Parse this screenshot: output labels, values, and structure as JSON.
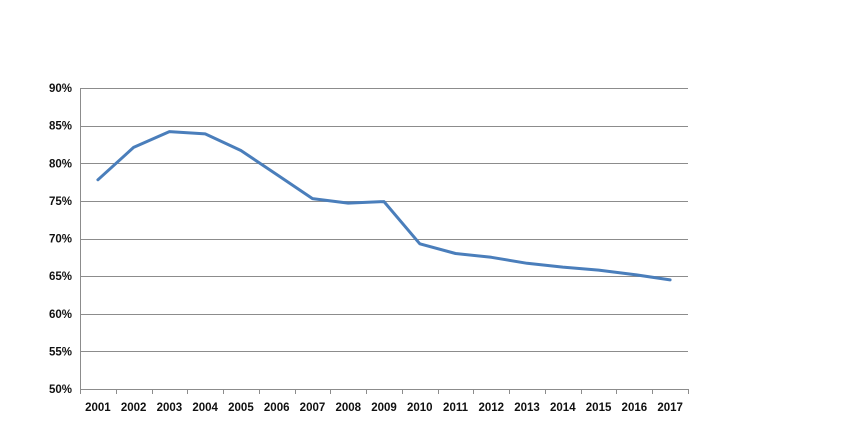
{
  "chart_data": {
    "type": "line",
    "title": "",
    "xlabel": "",
    "ylabel": "",
    "categories": [
      "2001",
      "2002",
      "2003",
      "2004",
      "2005",
      "2006",
      "2007",
      "2008",
      "2009",
      "2010",
      "2011",
      "2012",
      "2013",
      "2014",
      "2015",
      "2016",
      "2017"
    ],
    "series": [
      {
        "values": [
          77.8,
          82.1,
          84.2,
          83.9,
          81.7,
          78.5,
          75.3,
          74.7,
          74.9,
          69.3,
          68.0,
          67.5,
          66.7,
          66.2,
          65.8,
          65.2,
          64.5
        ],
        "color": "#4a7ebb"
      }
    ],
    "ylim": [
      50,
      90
    ],
    "yticks": [
      50,
      55,
      60,
      65,
      70,
      75,
      80,
      85,
      90
    ],
    "ytick_labels": [
      "50%",
      "55%",
      "60%",
      "65%",
      "70%",
      "75%",
      "80%",
      "85%",
      "90%"
    ],
    "grid": "horizontal",
    "legend": "none"
  }
}
